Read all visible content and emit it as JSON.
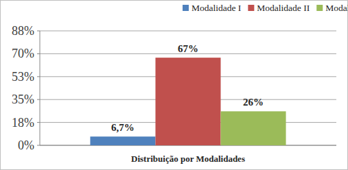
{
  "chart_data": {
    "type": "bar",
    "categories": [
      "Distribuição por Modalidades"
    ],
    "series": [
      {
        "name": "Modalidade I",
        "color": "#4f81bd",
        "values": [
          6.7
        ],
        "value_labels": [
          "6,7%"
        ]
      },
      {
        "name": "Modalidade II",
        "color": "#c0504d",
        "values": [
          67
        ],
        "value_labels": [
          "67%"
        ]
      },
      {
        "name": "Modalidade III",
        "color": "#9bbb59",
        "values": [
          26
        ],
        "value_labels": [
          "26%"
        ]
      }
    ],
    "ylim": [
      0,
      87.5
    ],
    "yticks": [
      {
        "value": 0,
        "label": "0%"
      },
      {
        "value": 17.5,
        "label": "18%"
      },
      {
        "value": 35,
        "label": "35%"
      },
      {
        "value": 52.5,
        "label": "53%"
      },
      {
        "value": 70,
        "label": "70%"
      },
      {
        "value": 87.5,
        "label": "88%"
      }
    ],
    "grid": true,
    "legend": "top",
    "data_labels": true
  }
}
